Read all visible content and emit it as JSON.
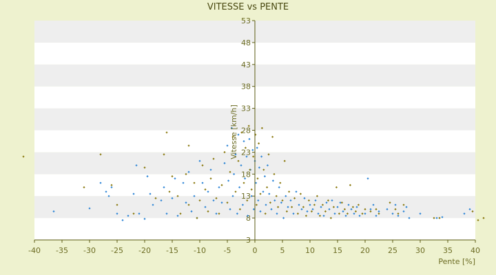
{
  "chart_data": {
    "type": "scatter",
    "title": "VITESSE vs PENTE",
    "xlabel": "Pente [%]",
    "ylabel": "Vitesse [km/h]",
    "xlim": [
      -40,
      40
    ],
    "ylim": [
      3,
      53
    ],
    "x_ticks": [
      -40,
      -35,
      -30,
      -25,
      -20,
      -15,
      -10,
      -5,
      0,
      5,
      10,
      15,
      20,
      25,
      30,
      35,
      40
    ],
    "y_ticks": [
      3,
      8,
      13,
      18,
      23,
      28,
      33,
      38,
      43,
      48,
      53
    ],
    "grid": true,
    "legend": "none",
    "colors": {
      "background": "#eef2cf",
      "band_light": "#ffffff",
      "band_dark": "#eeeeee",
      "axis": "#5a5a10",
      "series_blue": "#2f86d6",
      "series_olive": "#8b7a10"
    },
    "series": [
      {
        "color": "#2f86d6",
        "points": [
          [
            -36.5,
            9.5
          ],
          [
            -30,
            10.2
          ],
          [
            -28,
            16
          ],
          [
            -27,
            14
          ],
          [
            -26.5,
            13
          ],
          [
            -26,
            15
          ],
          [
            -25,
            9
          ],
          [
            -24,
            7.5
          ],
          [
            -23,
            8.5
          ],
          [
            -22,
            13.5
          ],
          [
            -21.5,
            20
          ],
          [
            -21,
            9
          ],
          [
            -20,
            7.8
          ],
          [
            -19.5,
            17.5
          ],
          [
            -19,
            13.5
          ],
          [
            -18.5,
            11
          ],
          [
            -17,
            12
          ],
          [
            -16.5,
            15
          ],
          [
            -16,
            9
          ],
          [
            -15,
            12.5
          ],
          [
            -14.5,
            17
          ],
          [
            -14,
            8.5
          ],
          [
            -13,
            16
          ],
          [
            -12.5,
            11.5
          ],
          [
            -12,
            18.5
          ],
          [
            -11.5,
            9.5
          ],
          [
            -11,
            13
          ],
          [
            -10.5,
            8
          ],
          [
            -10,
            21
          ],
          [
            -9.5,
            16
          ],
          [
            -9,
            10.5
          ],
          [
            -8.5,
            14
          ],
          [
            -8,
            19
          ],
          [
            -7.5,
            12
          ],
          [
            -7,
            9
          ],
          [
            -6.5,
            15
          ],
          [
            -6,
            11.5
          ],
          [
            -5.5,
            20.5
          ],
          [
            -5,
            24.5
          ],
          [
            -4.8,
            16.5
          ],
          [
            -4.5,
            10
          ],
          [
            -4.2,
            28.5
          ],
          [
            -4,
            13
          ],
          [
            -3.8,
            18
          ],
          [
            -3.5,
            22.5
          ],
          [
            -3.2,
            9
          ],
          [
            -3,
            27
          ],
          [
            -2.8,
            15
          ],
          [
            -2.5,
            20
          ],
          [
            -2.2,
            11
          ],
          [
            -2,
            25.5
          ],
          [
            -1.8,
            17
          ],
          [
            -1.5,
            22
          ],
          [
            -1.3,
            8.5
          ],
          [
            -1,
            26
          ],
          [
            -0.8,
            19
          ],
          [
            -0.6,
            13
          ],
          [
            -0.4,
            23.5
          ],
          [
            -0.2,
            10
          ],
          [
            0,
            21
          ],
          [
            0.2,
            16
          ],
          [
            0.4,
            24
          ],
          [
            0.6,
            12
          ],
          [
            0.8,
            19.5
          ],
          [
            1,
            9.5
          ],
          [
            1.2,
            22
          ],
          [
            1.5,
            14
          ],
          [
            1.8,
            17.5
          ],
          [
            2,
            11
          ],
          [
            2.3,
            20
          ],
          [
            2.6,
            13.5
          ],
          [
            3,
            10
          ],
          [
            3.3,
            16.5
          ],
          [
            3.6,
            12
          ],
          [
            4,
            9
          ],
          [
            4.4,
            15
          ],
          [
            4.8,
            11.5
          ],
          [
            5.2,
            8
          ],
          [
            5.6,
            13
          ],
          [
            6,
            10.5
          ],
          [
            6.5,
            12
          ],
          [
            7,
            9
          ],
          [
            7.5,
            14
          ],
          [
            8,
            11
          ],
          [
            8.5,
            10
          ],
          [
            9,
            12.5
          ],
          [
            9.5,
            9.5
          ],
          [
            10,
            11
          ],
          [
            10.5,
            10
          ],
          [
            11,
            12
          ],
          [
            11.5,
            9
          ],
          [
            12,
            10.5
          ],
          [
            12.5,
            8.5
          ],
          [
            13,
            11.5
          ],
          [
            13.5,
            10
          ],
          [
            14,
            12
          ],
          [
            14.5,
            9
          ],
          [
            15,
            10.5
          ],
          [
            15.5,
            11.5
          ],
          [
            16,
            9.5
          ],
          [
            16.5,
            8.5
          ],
          [
            17,
            11
          ],
          [
            17.5,
            10
          ],
          [
            18,
            9
          ],
          [
            18.5,
            10.5
          ],
          [
            19,
            8.5
          ],
          [
            20,
            9
          ],
          [
            20.5,
            17
          ],
          [
            21,
            10
          ],
          [
            21.5,
            11
          ],
          [
            22,
            8.5
          ],
          [
            22.5,
            9.5
          ],
          [
            24,
            10
          ],
          [
            25,
            9
          ],
          [
            25.5,
            11
          ],
          [
            26,
            8.5
          ],
          [
            27,
            9.5
          ],
          [
            27.5,
            10.5
          ],
          [
            28,
            8
          ],
          [
            30,
            9
          ],
          [
            33,
            8
          ],
          [
            34,
            8.2
          ],
          [
            38,
            9
          ],
          [
            39,
            10
          ]
        ]
      },
      {
        "color": "#8b7a10",
        "points": [
          [
            -42,
            22
          ],
          [
            -31,
            15
          ],
          [
            -28,
            22.5
          ],
          [
            -26,
            15.5
          ],
          [
            -25,
            11
          ],
          [
            -22,
            9
          ],
          [
            -20,
            19.5
          ],
          [
            -18,
            12.5
          ],
          [
            -16.5,
            22.5
          ],
          [
            -16,
            27.5
          ],
          [
            -15.5,
            14
          ],
          [
            -15,
            17.5
          ],
          [
            -14,
            13
          ],
          [
            -13.5,
            9
          ],
          [
            -12.5,
            18
          ],
          [
            -12,
            11
          ],
          [
            -12,
            24.5
          ],
          [
            -11,
            16
          ],
          [
            -10.5,
            8
          ],
          [
            -10,
            12
          ],
          [
            -9.5,
            20
          ],
          [
            -9,
            14.5
          ],
          [
            -8.5,
            9.5
          ],
          [
            -8,
            17
          ],
          [
            -7.5,
            21.5
          ],
          [
            -7,
            12.5
          ],
          [
            -6.5,
            9
          ],
          [
            -6,
            15.5
          ],
          [
            -5.5,
            23
          ],
          [
            -5,
            11.5
          ],
          [
            -4.5,
            18.5
          ],
          [
            -4,
            26.5
          ],
          [
            -3.5,
            14
          ],
          [
            -3,
            21
          ],
          [
            -2.7,
            10
          ],
          [
            -2.4,
            27.5
          ],
          [
            -2,
            16
          ],
          [
            -1.7,
            24
          ],
          [
            -1.4,
            12
          ],
          [
            -1.1,
            29
          ],
          [
            -0.9,
            19
          ],
          [
            -0.6,
            14.5
          ],
          [
            -0.3,
            22
          ],
          [
            0.1,
            27
          ],
          [
            0.3,
            11
          ],
          [
            0.5,
            17
          ],
          [
            0.7,
            25
          ],
          [
            1,
            13.5
          ],
          [
            1.3,
            28.5
          ],
          [
            1.6,
            19
          ],
          [
            1.9,
            9
          ],
          [
            2.2,
            15
          ],
          [
            2.5,
            22.5
          ],
          [
            2.8,
            11.5
          ],
          [
            3.2,
            26.5
          ],
          [
            3.5,
            18
          ],
          [
            3.9,
            13
          ],
          [
            4.2,
            10.5
          ],
          [
            4.6,
            16
          ],
          [
            5,
            12
          ],
          [
            5.4,
            21
          ],
          [
            5.8,
            9.5
          ],
          [
            6.2,
            14
          ],
          [
            6.7,
            10.5
          ],
          [
            7.2,
            12.5
          ],
          [
            7.8,
            9
          ],
          [
            8.3,
            13.5
          ],
          [
            8.8,
            10.5
          ],
          [
            9.3,
            8.5
          ],
          [
            9.8,
            12
          ],
          [
            10.3,
            9.5
          ],
          [
            10.8,
            11
          ],
          [
            11.3,
            13
          ],
          [
            11.8,
            8.5
          ],
          [
            12.3,
            11
          ],
          [
            12.8,
            9.5
          ],
          [
            13.3,
            12
          ],
          [
            13.8,
            8
          ],
          [
            14.3,
            10.5
          ],
          [
            14.8,
            15
          ],
          [
            15.3,
            9
          ],
          [
            15.8,
            11.5
          ],
          [
            16.3,
            10
          ],
          [
            16.8,
            9
          ],
          [
            17.3,
            15.5
          ],
          [
            17.8,
            10.5
          ],
          [
            18.3,
            9.5
          ],
          [
            18.8,
            11
          ],
          [
            19.5,
            9
          ],
          [
            20,
            10
          ],
          [
            21,
            9.5
          ],
          [
            22,
            10
          ],
          [
            22.5,
            9
          ],
          [
            24.5,
            11.5
          ],
          [
            25.5,
            10
          ],
          [
            26,
            9
          ],
          [
            27,
            11
          ],
          [
            32.5,
            8
          ],
          [
            33.5,
            8
          ],
          [
            39.5,
            9.5
          ],
          [
            40.5,
            7.5
          ],
          [
            41.5,
            8
          ]
        ]
      }
    ]
  }
}
